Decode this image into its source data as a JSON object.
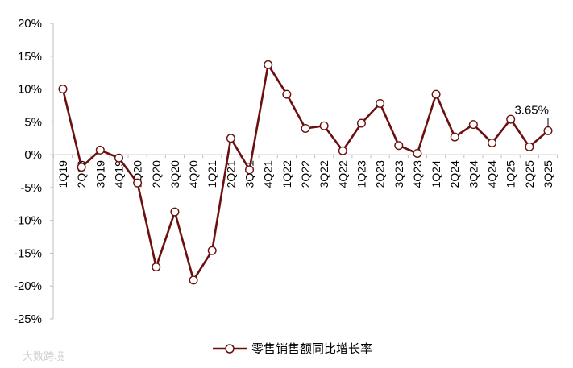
{
  "chart_data": {
    "type": "line",
    "title": "",
    "xlabel": "",
    "ylabel": "",
    "ylim": [
      -25,
      20
    ],
    "yticks": [
      20,
      15,
      10,
      5,
      0,
      -5,
      -10,
      -15,
      -20,
      -25
    ],
    "ytick_labels": [
      "20%",
      "15%",
      "10%",
      "5%",
      "0%",
      "-5%",
      "-10%",
      "-15%",
      "-20%",
      "-25%"
    ],
    "categories": [
      "1Q19",
      "2Q19",
      "3Q19",
      "4Q19",
      "1Q20",
      "2Q20",
      "3Q20",
      "4Q20",
      "1Q21",
      "2Q21",
      "3Q21",
      "4Q21",
      "1Q22",
      "2Q22",
      "3Q22",
      "4Q22",
      "1Q23",
      "2Q23",
      "3Q23",
      "4Q23",
      "1Q24",
      "2Q24",
      "3Q24",
      "4Q24",
      "1Q25",
      "2Q25",
      "3Q25"
    ],
    "series": [
      {
        "name": "零售销售额同比增长率",
        "color": "#6b0f0f",
        "marker": "circle-open",
        "values": [
          10.0,
          -1.9,
          0.7,
          -0.5,
          -4.3,
          -17.1,
          -8.7,
          -19.1,
          -14.6,
          2.5,
          -2.3,
          13.7,
          9.2,
          4.0,
          4.4,
          0.6,
          4.8,
          7.8,
          1.4,
          0.2,
          9.2,
          2.7,
          4.6,
          1.8,
          5.4,
          1.2,
          3.65
        ]
      }
    ],
    "annotations": [
      {
        "label": "3.65%",
        "category": "3Q25"
      }
    ],
    "legend_position": "bottom-center",
    "grid": false
  },
  "watermark": "大数跨境"
}
